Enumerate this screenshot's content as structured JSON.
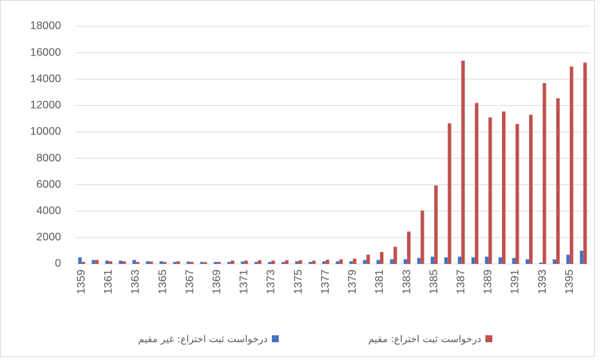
{
  "chart_data": {
    "type": "bar",
    "categories": [
      "1359",
      null,
      "1361",
      null,
      "1363",
      null,
      "1365",
      null,
      "1367",
      null,
      "1369",
      null,
      "1371",
      null,
      "1373",
      null,
      "1375",
      null,
      "1377",
      null,
      "1379",
      null,
      "1381",
      null,
      "1383",
      null,
      "1385",
      null,
      "1387",
      null,
      "1389",
      null,
      "1391",
      null,
      "1393",
      null,
      "1395",
      null
    ],
    "series": [
      {
        "name": "درخواست ثبت اختراع: غیر مقیم",
        "color": "#4472c4",
        "values": [
          500,
          300,
          250,
          250,
          300,
          200,
          200,
          150,
          180,
          150,
          150,
          150,
          180,
          150,
          150,
          150,
          200,
          150,
          200,
          200,
          200,
          300,
          300,
          350,
          350,
          450,
          550,
          500,
          550,
          500,
          550,
          500,
          450,
          350,
          100,
          350,
          700,
          1000
        ]
      },
      {
        "name": "درخواست ثبت اختراع: مقیم",
        "color": "#c0504d",
        "values": [
          150,
          300,
          200,
          200,
          150,
          180,
          150,
          200,
          150,
          130,
          150,
          250,
          250,
          280,
          250,
          280,
          280,
          250,
          320,
          350,
          400,
          700,
          900,
          1300,
          2450,
          4050,
          5950,
          10650,
          15400,
          12200,
          11100,
          11550,
          10600,
          11300,
          13700,
          12550,
          14950,
          15250
        ]
      }
    ],
    "ylim": [
      0,
      18000
    ],
    "yticks": [
      0,
      2000,
      4000,
      6000,
      8000,
      10000,
      12000,
      14000,
      16000,
      18000
    ],
    "grid": true,
    "legend": "bottom"
  }
}
